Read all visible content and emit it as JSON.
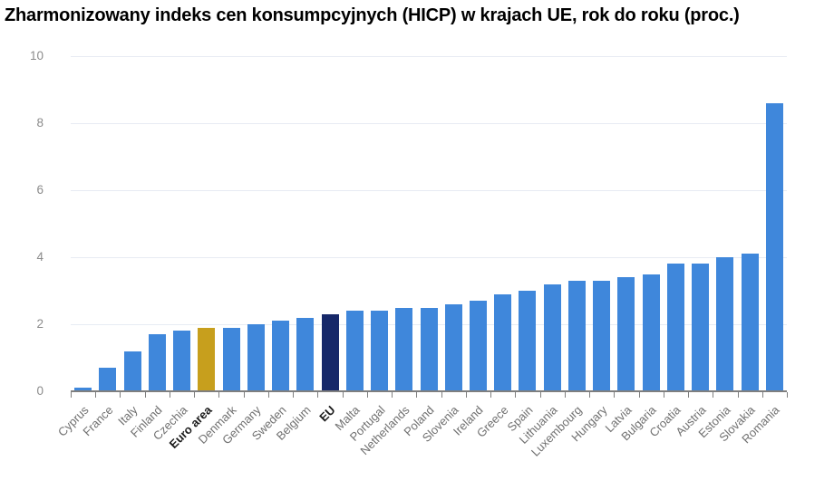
{
  "chart_data": {
    "type": "bar",
    "title": "Zharmonizowany indeks cen konsumpcyjnych (HICP) w krajach UE, rok do roku (proc.)",
    "xlabel": "",
    "ylabel": "",
    "unit": "proc.",
    "categories": [
      "Cyprus",
      "France",
      "Italy",
      "Finland",
      "Czechia",
      "Euro area",
      "Denmark",
      "Germany",
      "Sweden",
      "Belgium",
      "EU",
      "Malta",
      "Portugal",
      "Netherlands",
      "Poland",
      "Slovenia",
      "Ireland",
      "Greece",
      "Spain",
      "Lithuania",
      "Luxembourg",
      "Hungary",
      "Latvia",
      "Bulgaria",
      "Croatia",
      "Austria",
      "Estonia",
      "Slovakia",
      "Romania"
    ],
    "values": [
      0.1,
      0.7,
      1.2,
      1.7,
      1.8,
      1.9,
      1.9,
      2.0,
      2.1,
      2.2,
      2.3,
      2.4,
      2.4,
      2.5,
      2.5,
      2.6,
      2.7,
      2.9,
      3.0,
      3.2,
      3.3,
      3.3,
      3.4,
      3.5,
      3.8,
      3.8,
      4.0,
      4.1,
      8.6
    ],
    "ylim": [
      0,
      10
    ],
    "yticks": [
      0,
      2,
      4,
      6,
      8,
      10
    ],
    "grid": "horizontal",
    "legend": "none",
    "x_label_rotation_deg": 45,
    "emphasized_categories": [
      "Euro area",
      "EU"
    ],
    "highlights": [
      {
        "category": "Euro area",
        "color": "#C79F1D"
      },
      {
        "category": "EU",
        "color": "#162869"
      }
    ],
    "colors": {
      "bar": "#3F87DB",
      "gridline": "#E7EBF3",
      "axis_line": "#7F7F7F",
      "y_tick_label": "#8B8B8B",
      "x_tick_label": "#707070",
      "emphasized_label": "#1A1A1A",
      "title": "#000000",
      "background": "#FFFFFF"
    }
  }
}
